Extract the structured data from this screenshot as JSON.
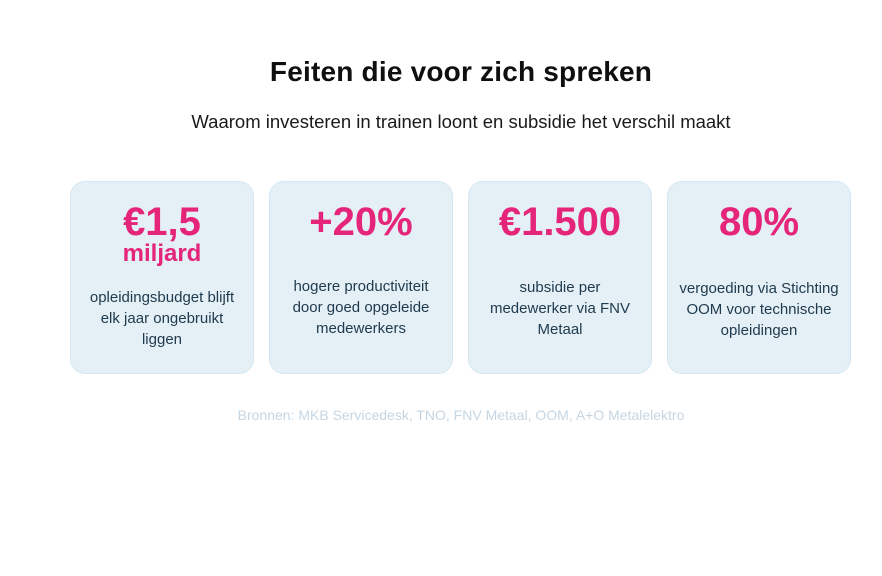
{
  "heading": {
    "title": "Feiten die voor zich spreken",
    "subtitle": "Waarom investeren in trainen loont en subsidie het verschil maakt"
  },
  "cards": [
    {
      "stat": "€1,5",
      "stat_sub": "miljard",
      "description": "opleidingsbudget blijft elk jaar ongebruikt liggen"
    },
    {
      "stat": "+20%",
      "description": "hogere productiviteit door goed opgeleide medewerkers"
    },
    {
      "stat": "€1.500",
      "description": "subsidie per medewerker via FNV Metaal"
    },
    {
      "stat": "80%",
      "description": "vergoeding via Stichting OOM voor technische opleidingen"
    }
  ],
  "sources": "Bronnen: MKB Servicedesk, TNO, FNV Metaal, OOM, A+O Metalelektro",
  "colors": {
    "accent": "#e5257a",
    "card_bg": "#e4eff6",
    "text_dark": "#1f3a4d",
    "muted": "#c6d6e3"
  }
}
